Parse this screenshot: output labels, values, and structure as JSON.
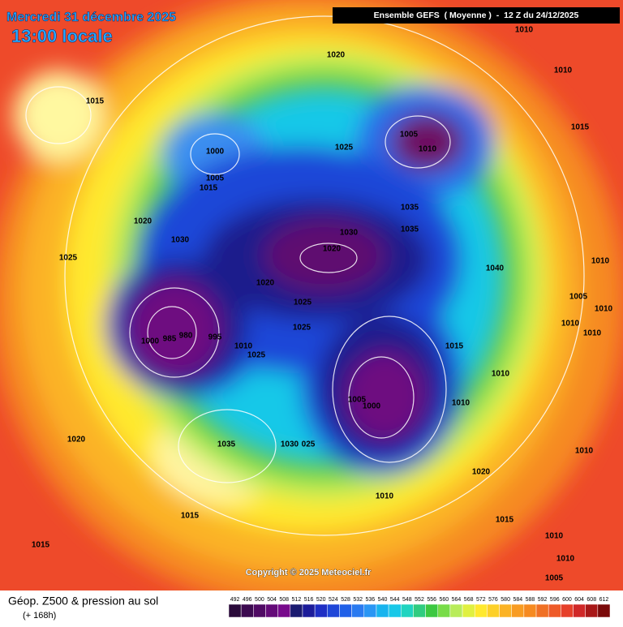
{
  "header": {
    "date": "Mercredi 31 décembre 2025",
    "time": "13:00 locale",
    "run": "Ensemble GEFS  ( Moyenne )  -  12 Z du 24/12/2025"
  },
  "map": {
    "isobar_labels": [
      "1010",
      "1010",
      "1020",
      "1015",
      "1005",
      "1010",
      "1015",
      "1025",
      "1000",
      "1005",
      "1015",
      "1020",
      "1035",
      "1030",
      "1030",
      "1035",
      "1020",
      "1010",
      "1040",
      "1025",
      "1020",
      "1005",
      "1025",
      "1010",
      "1010",
      "1025",
      "1010",
      "1000",
      "985",
      "980",
      "995",
      "1010",
      "1025",
      "1015",
      "1010",
      "1005",
      "1000",
      "1010",
      "1020",
      "1035",
      "1030",
      "025",
      "1010",
      "1020",
      "1010",
      "1015",
      "1015",
      "1015",
      "1010",
      "1010",
      "1005"
    ],
    "copyright": "Copyright © 2025 Meteociel.fr"
  },
  "footer": {
    "title": "Géop. Z500 & pression au sol",
    "lead": "(+ 168h)"
  },
  "legend": {
    "levels": [
      "492",
      "496",
      "500",
      "504",
      "508",
      "512",
      "516",
      "520",
      "524",
      "528",
      "532",
      "536",
      "540",
      "544",
      "548",
      "552",
      "556",
      "560",
      "564",
      "568",
      "572",
      "576",
      "580",
      "584",
      "588",
      "592",
      "596",
      "600",
      "604",
      "608",
      "612"
    ]
  }
}
